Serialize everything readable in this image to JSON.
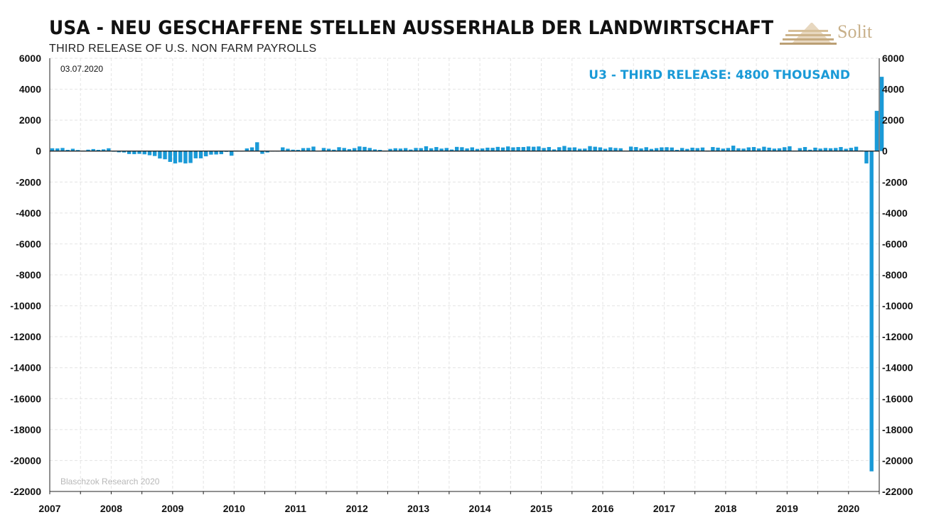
{
  "header": {
    "title": "USA - NEU GESCHAFFENE STELLEN AUSSERHALB DER LANDWIRTSCHAFT",
    "subtitle": "THIRD RELEASE OF U.S. NON FARM PAYROLLS",
    "logo_text": "Solit"
  },
  "chart_data": {
    "type": "bar",
    "title": "USA - NEU GESCHAFFENE STELLEN AUSSERHALB DER LANDWIRTSCHAFT",
    "subtitle": "THIRD RELEASE OF U.S. NON FARM PAYROLLS",
    "date_label": "03.07.2020",
    "annotation": "U3 - THIRD RELEASE: 4800 THOUSAND",
    "source": "Blaschzok Research 2020",
    "color": "#1a9ad7",
    "ylim": [
      -22000,
      6000
    ],
    "yticks": [
      6000,
      4000,
      2000,
      0,
      -2000,
      -4000,
      -6000,
      -8000,
      -10000,
      -12000,
      -14000,
      -16000,
      -18000,
      -20000,
      -22000
    ],
    "xlim": [
      2007,
      2020.5
    ],
    "xticks": [
      "2007",
      "2008",
      "2009",
      "2010",
      "2011",
      "2012",
      "2013",
      "2014",
      "2015",
      "2016",
      "2017",
      "2018",
      "2019",
      "2020"
    ],
    "grid": true,
    "series": [
      {
        "start": "2007-01",
        "frequency": "monthly",
        "values": [
          180,
          170,
          200,
          80,
          150,
          70,
          30,
          90,
          130,
          80,
          110,
          180,
          -40,
          -80,
          -90,
          -190,
          -200,
          -180,
          -210,
          -270,
          -320,
          -480,
          -530,
          -700,
          -800,
          -730,
          -800,
          -770,
          -470,
          -470,
          -340,
          -230,
          -220,
          -200,
          -50,
          -300,
          30,
          -20,
          170,
          240,
          570,
          -180,
          -90,
          0,
          -20,
          240,
          150,
          90,
          80,
          190,
          200,
          290,
          10,
          200,
          150,
          90,
          250,
          200,
          130,
          190,
          300,
          270,
          200,
          110,
          80,
          30,
          140,
          180,
          160,
          190,
          100,
          200,
          190,
          310,
          180,
          260,
          160,
          200,
          100,
          270,
          250,
          170,
          240,
          140,
          170,
          220,
          210,
          270,
          230,
          300,
          240,
          260,
          260,
          300,
          280,
          300,
          200,
          260,
          110,
          250,
          330,
          230,
          240,
          150,
          160,
          320,
          280,
          240,
          150,
          240,
          200,
          180,
          20,
          290,
          260,
          170,
          250,
          140,
          190,
          240,
          250,
          230,
          80,
          200,
          140,
          220,
          190,
          230,
          30,
          260,
          220,
          160,
          200,
          350,
          180,
          160,
          240,
          260,
          170,
          280,
          220,
          160,
          180,
          250,
          310,
          30,
          190,
          260,
          90,
          220,
          160,
          200,
          180,
          200,
          260,
          150,
          210,
          280,
          40,
          -800,
          -20700,
          2600,
          4800
        ]
      }
    ]
  }
}
